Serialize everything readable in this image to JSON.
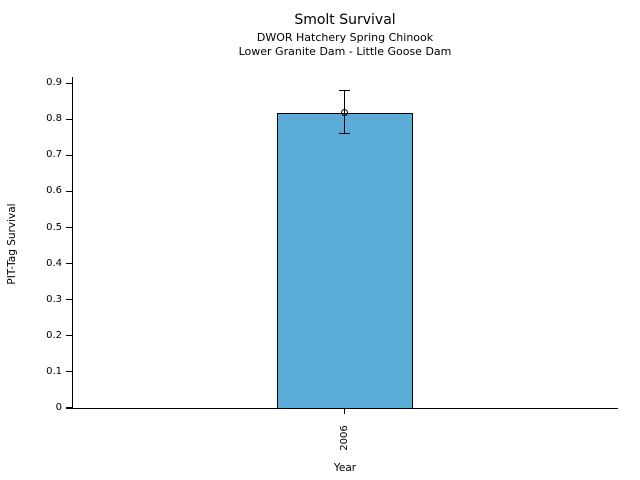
{
  "chart_data": {
    "type": "bar",
    "title": "Smolt Survival",
    "subtitle1": "DWOR Hatchery Spring Chinook",
    "subtitle2": "Lower Granite Dam - Little Goose Dam",
    "xlabel": "Year",
    "ylabel": "PIT-Tag Survival",
    "categories": [
      "2006"
    ],
    "values": [
      0.818
    ],
    "error_bars": [
      {
        "low": 0.76,
        "high": 0.88
      }
    ],
    "marker": "open-circle-at-bar-top",
    "yticks": [
      0,
      0.1,
      0.2,
      0.3,
      0.4,
      0.5,
      0.6,
      0.7,
      0.8,
      0.9
    ],
    "ytick_labels": [
      "0",
      "0.1",
      "0.2",
      "0.3",
      "0.4",
      "0.5",
      "0.6",
      "0.7",
      "0.8",
      "0.9"
    ],
    "ylim": [
      0,
      0.92
    ],
    "xtick_rotation_deg": 90,
    "grid": false,
    "bar_color": "#5bacd6",
    "bar_edge_color": "#000000",
    "error_color": "#000000",
    "background": "#ffffff"
  }
}
